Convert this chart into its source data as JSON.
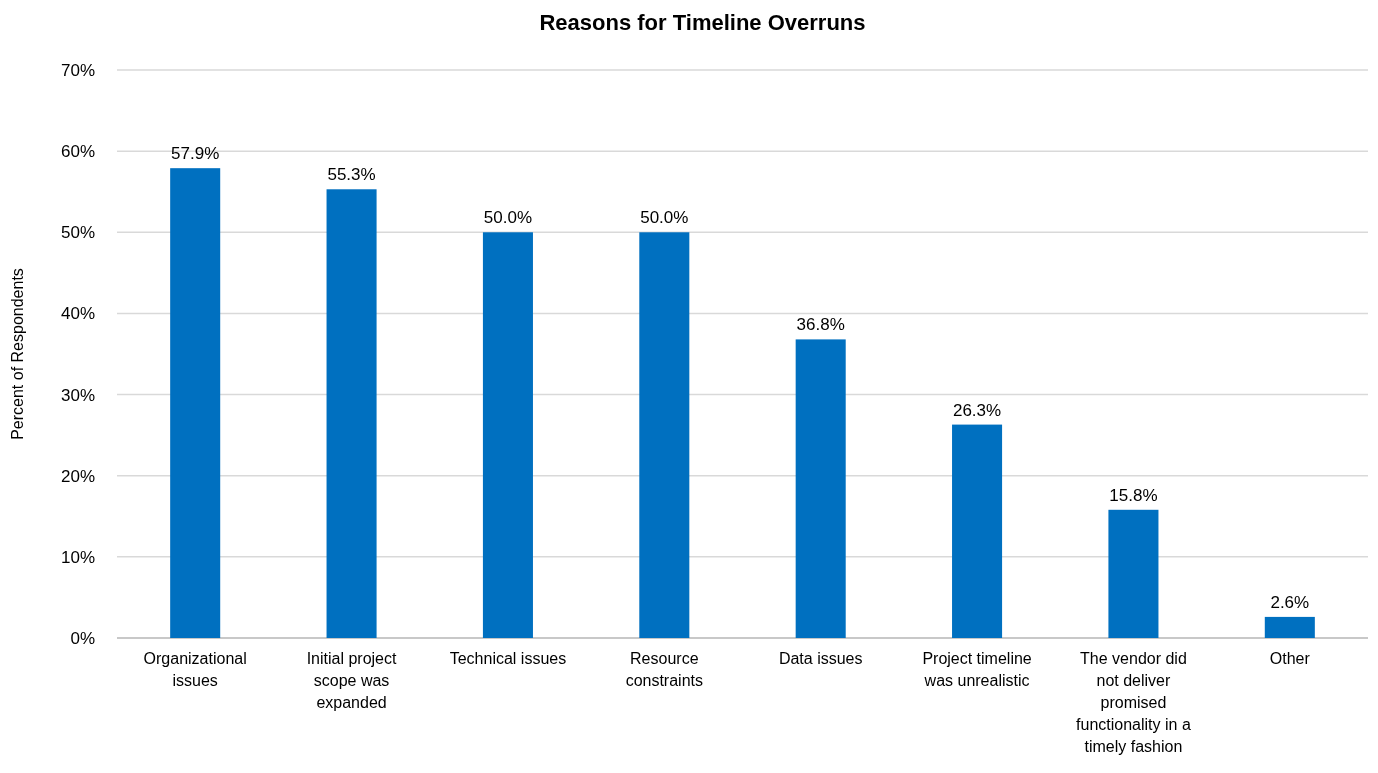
{
  "chart_data": {
    "type": "bar",
    "title": "Reasons for Timeline Overruns",
    "ylabel": "Percent of Respondents",
    "categories": [
      "Organizational issues",
      "Initial project scope was expanded",
      "Technical issues",
      "Resource constraints",
      "Data issues",
      "Project timeline was unrealistic",
      "The vendor did not deliver promised functionality in a timely fashion",
      "Other"
    ],
    "values": [
      57.9,
      55.3,
      50.0,
      50.0,
      36.8,
      26.3,
      15.8,
      2.6
    ],
    "value_labels": [
      "57.9%",
      "55.3%",
      "50.0%",
      "50.0%",
      "36.8%",
      "26.3%",
      "15.8%",
      "2.6%"
    ],
    "color": "#0070c0",
    "ylim": [
      0,
      70
    ],
    "yticks": [
      {
        "value": 0,
        "label": "0%"
      },
      {
        "value": 10,
        "label": "10%"
      },
      {
        "value": 20,
        "label": "20%"
      },
      {
        "value": 30,
        "label": "30%"
      },
      {
        "value": 40,
        "label": "40%"
      },
      {
        "value": 50,
        "label": "50%"
      },
      {
        "value": 60,
        "label": "60%"
      },
      {
        "value": 70,
        "label": "70%"
      }
    ],
    "grid": "y"
  }
}
